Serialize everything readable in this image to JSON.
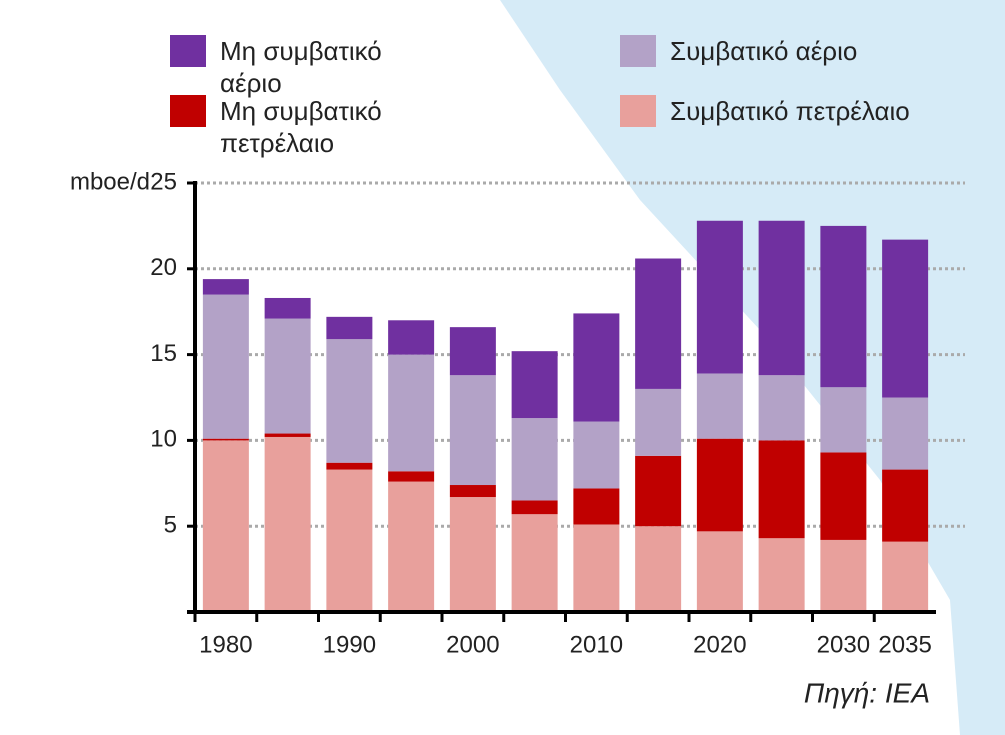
{
  "chart_data": {
    "type": "stacked_bar",
    "y_label": "mboe/d",
    "source": "Πηγή: IEA",
    "categories": [
      "1980",
      null,
      "1990",
      null,
      "2000",
      null,
      "2010",
      null,
      "2020",
      null,
      "2030",
      "2035"
    ],
    "series": [
      {
        "name": "Συμβατικό πετρέλαιο",
        "color": "#e8a09c",
        "values": [
          10.0,
          10.2,
          8.3,
          7.6,
          6.7,
          5.7,
          5.1,
          5.0,
          4.7,
          4.3,
          4.2,
          4.1
        ]
      },
      {
        "name": "Μη συμβατικό πετρέλαιο",
        "color": "#c00000",
        "values": [
          0.1,
          0.2,
          0.4,
          0.6,
          0.7,
          0.8,
          2.1,
          4.1,
          5.4,
          5.7,
          5.1,
          4.2
        ]
      },
      {
        "name": "Συμβατικό αέριο",
        "color": "#b3a2c7",
        "values": [
          8.4,
          6.7,
          7.2,
          6.8,
          6.4,
          4.8,
          3.9,
          3.9,
          3.8,
          3.8,
          3.8,
          4.2
        ]
      },
      {
        "name": "Μη συμβατικό αέριο",
        "color": "#7030a0",
        "values": [
          0.9,
          1.2,
          1.3,
          2.0,
          2.8,
          3.9,
          6.3,
          7.6,
          8.9,
          9.0,
          9.4,
          9.2
        ]
      }
    ],
    "ylim": [
      0,
      25
    ],
    "yticks": [
      5,
      10,
      15,
      20,
      25
    ],
    "grid": true
  }
}
